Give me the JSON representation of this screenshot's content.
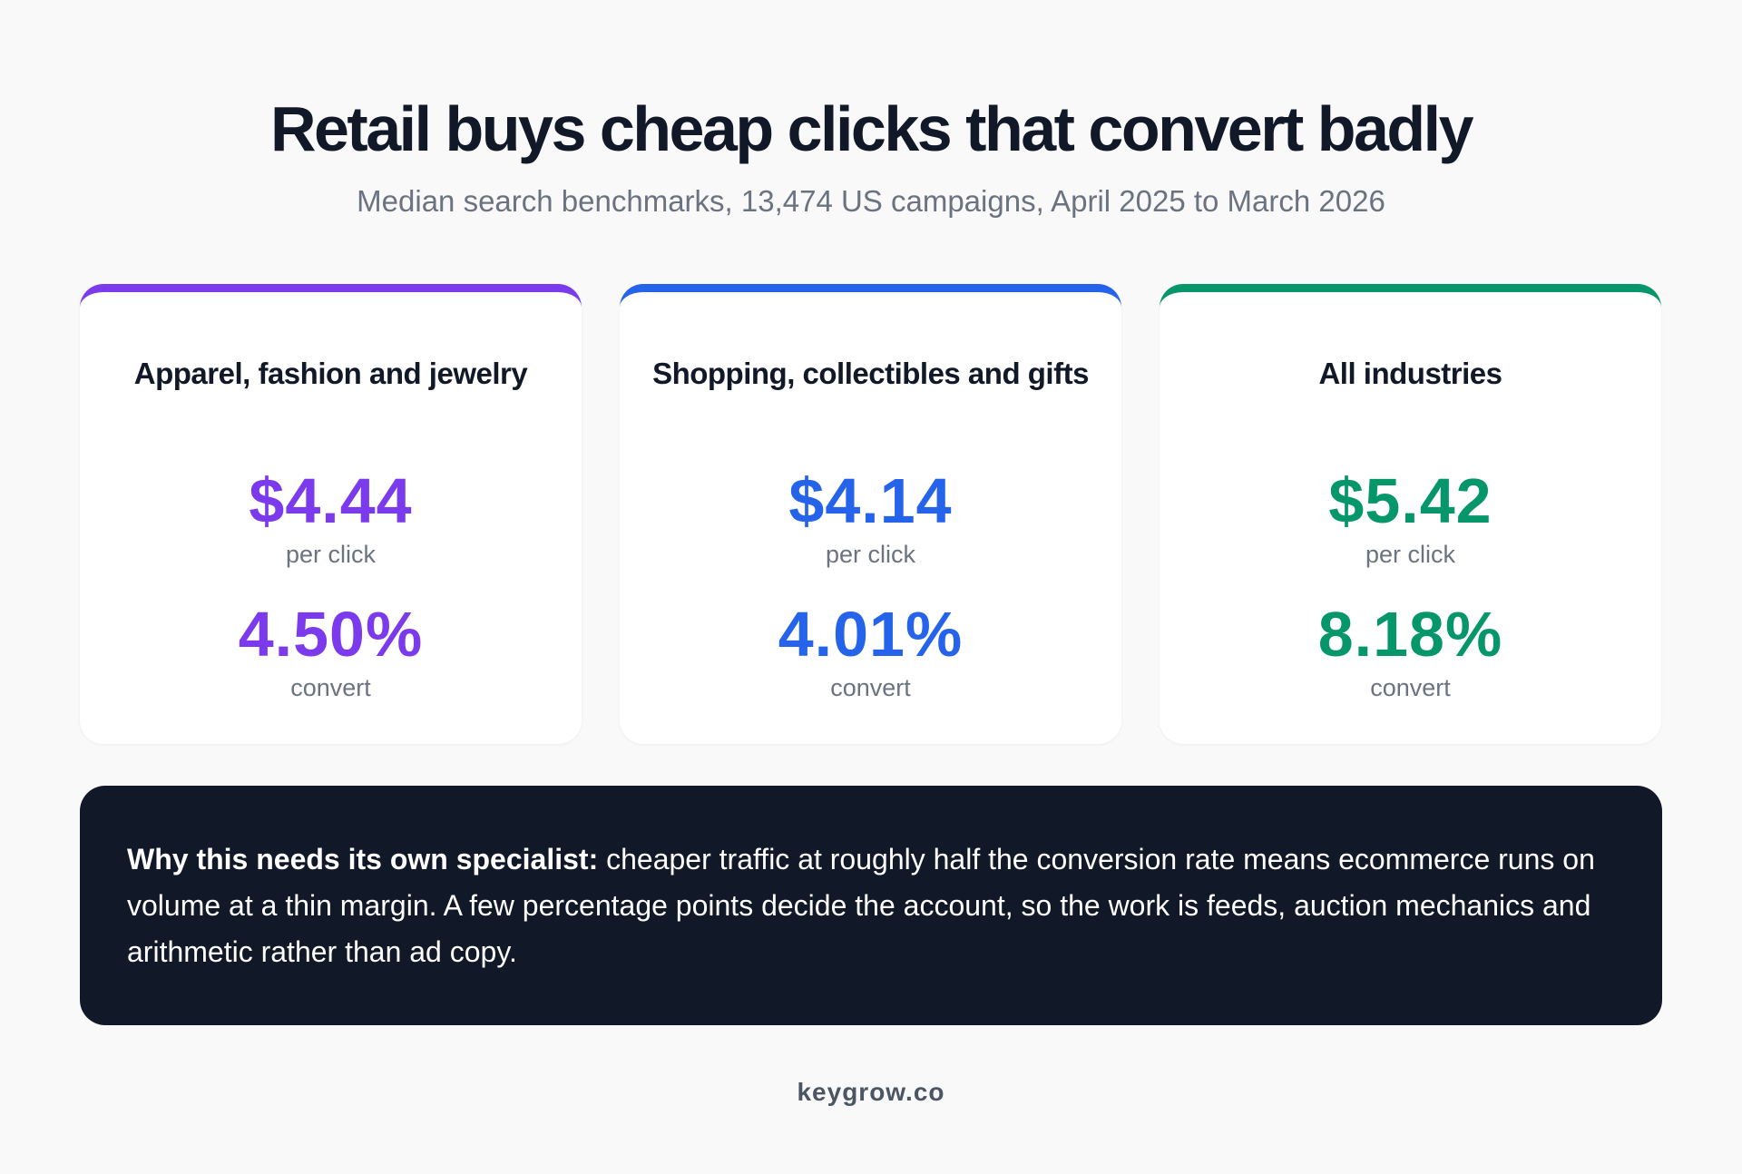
{
  "header": {
    "title": "Retail buys cheap clicks that convert badly",
    "subtitle": "Median search benchmarks, 13,474 US campaigns, April 2025 to March 2026"
  },
  "cards": [
    {
      "title": "Apparel, fashion and jewelry",
      "cpc": "$4.44",
      "cpc_label": "per click",
      "conversion": "4.50%",
      "conversion_label": "convert",
      "accent_color": "#7c3aed"
    },
    {
      "title": "Shopping, collectibles and gifts",
      "cpc": "$4.14",
      "cpc_label": "per click",
      "conversion": "4.01%",
      "conversion_label": "convert",
      "accent_color": "#2563eb"
    },
    {
      "title": "All industries",
      "cpc": "$5.42",
      "cpc_label": "per click",
      "conversion": "8.18%",
      "conversion_label": "convert",
      "accent_color": "#059669"
    }
  ],
  "note": {
    "lead": "Why this needs its own specialist:",
    "body": " cheaper traffic at roughly half the conversion rate means ecommerce runs on volume at a thin margin. A few percentage points decide the account, so the work is feeds, auction mechanics and arithmetic rather than ad copy."
  },
  "footer": {
    "brand": "keygrow.co"
  }
}
